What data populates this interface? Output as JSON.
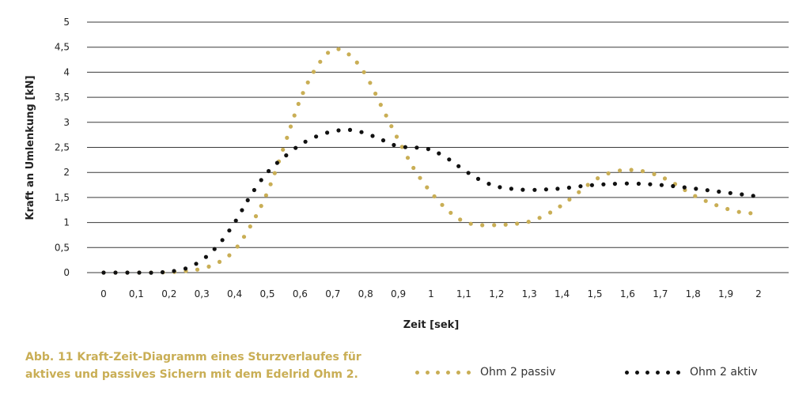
{
  "chart_data": {
    "type": "scatter",
    "title": "",
    "xlabel": "Zeit [sek]",
    "ylabel": "Kraft an Umlenkung [kN]",
    "xlim": [
      0,
      2
    ],
    "ylim": [
      0,
      5
    ],
    "x_ticks": [
      "0",
      "0,1",
      "0,2",
      "0,3",
      "0,4",
      "0,5",
      "0,6",
      "0,7",
      "0,8",
      "0,9",
      "1",
      "1,1",
      "1,2",
      "1,3",
      "1,4",
      "1,5",
      "1,6",
      "1,7",
      "1,8",
      "1,9",
      "2"
    ],
    "y_ticks": [
      "0",
      "0,5",
      "1",
      "1,5",
      "2",
      "2,5",
      "3",
      "3,5",
      "4",
      "4,5",
      "5"
    ],
    "grid": "horizontal",
    "legend_position": "bottom-right",
    "series": [
      {
        "name": "Ohm 2 passiv",
        "color": "#c9ae55",
        "x": [
          0,
          0.05,
          0.1,
          0.15,
          0.2,
          0.25,
          0.3,
          0.35,
          0.4,
          0.45,
          0.5,
          0.55,
          0.6,
          0.65,
          0.7,
          0.75,
          0.8,
          0.85,
          0.9,
          0.95,
          1.0,
          1.05,
          1.1,
          1.15,
          1.2,
          1.25,
          1.3,
          1.35,
          1.4,
          1.45,
          1.5,
          1.55,
          1.6,
          1.65,
          1.7,
          1.75,
          1.8,
          1.85,
          1.9,
          1.95,
          2.0
        ],
        "y": [
          0,
          0,
          0,
          0,
          0.01,
          0.03,
          0.08,
          0.2,
          0.45,
          0.95,
          1.6,
          2.5,
          3.45,
          4.1,
          4.45,
          4.35,
          3.95,
          3.3,
          2.65,
          2.05,
          1.6,
          1.25,
          1.02,
          0.95,
          0.95,
          0.97,
          1.02,
          1.15,
          1.35,
          1.6,
          1.85,
          2.0,
          2.05,
          2.02,
          1.92,
          1.75,
          1.55,
          1.4,
          1.28,
          1.2,
          1.18
        ]
      },
      {
        "name": "Ohm 2 aktiv",
        "color": "#111111",
        "x": [
          0,
          0.05,
          0.1,
          0.15,
          0.2,
          0.25,
          0.3,
          0.35,
          0.4,
          0.45,
          0.5,
          0.55,
          0.6,
          0.65,
          0.7,
          0.75,
          0.8,
          0.85,
          0.9,
          0.95,
          1.0,
          1.05,
          1.1,
          1.15,
          1.2,
          1.25,
          1.3,
          1.35,
          1.4,
          1.45,
          1.5,
          1.55,
          1.6,
          1.65,
          1.7,
          1.75,
          1.8,
          1.85,
          1.9,
          1.95,
          2.0
        ],
        "y": [
          0,
          0,
          0,
          0,
          0.02,
          0.08,
          0.25,
          0.55,
          1.0,
          1.55,
          2.0,
          2.3,
          2.55,
          2.72,
          2.82,
          2.85,
          2.78,
          2.65,
          2.52,
          2.5,
          2.45,
          2.28,
          2.05,
          1.85,
          1.72,
          1.67,
          1.65,
          1.66,
          1.68,
          1.72,
          1.75,
          1.77,
          1.78,
          1.77,
          1.75,
          1.72,
          1.68,
          1.64,
          1.6,
          1.56,
          1.52
        ]
      }
    ]
  },
  "caption": {
    "line1": "Abb. 11 Kraft-Zeit-Diagramm eines Sturzverlaufes für",
    "line2": "aktives und passives Sichern mit dem Edelrid Ohm 2."
  },
  "legend": {
    "passive_label": "Ohm 2 passiv",
    "active_label": "Ohm 2 aktiv",
    "passive_color": "#c9ae55",
    "active_color": "#111111"
  }
}
